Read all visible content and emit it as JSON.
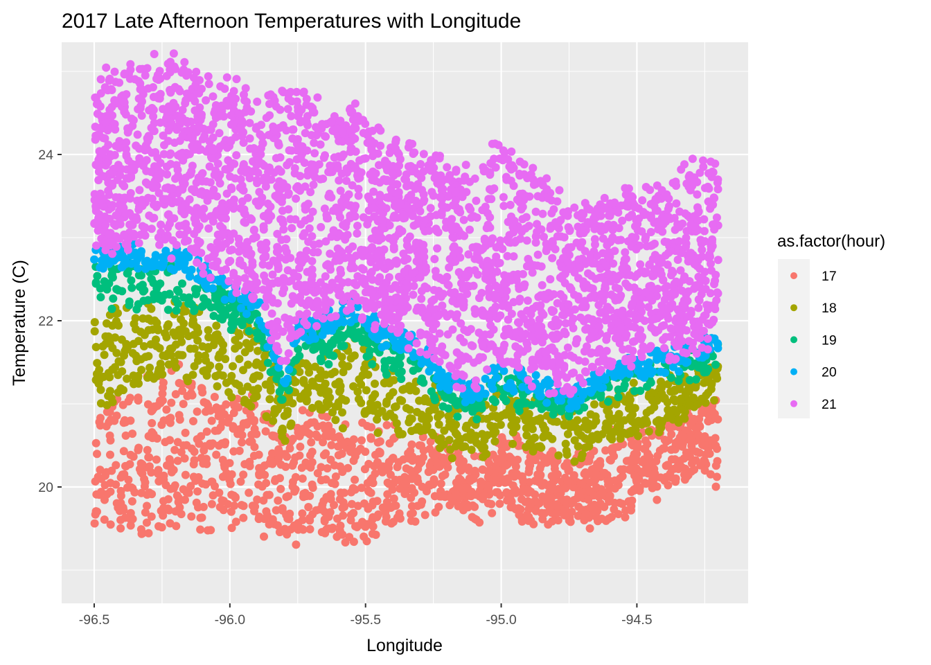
{
  "chart_data": {
    "type": "scatter",
    "title": "2017 Late Afternoon Temperatures with Longitude",
    "xlabel": "Longitude",
    "ylabel": "Temperature (C)",
    "xlim": [
      -96.62,
      -94.09
    ],
    "ylim": [
      18.6,
      25.35
    ],
    "x_ticks": [
      -96.5,
      -96.0,
      -95.5,
      -95.0,
      -94.5
    ],
    "x_tick_labels": [
      "-96.5",
      "-96.0",
      "-95.5",
      "-95.0",
      "-94.5"
    ],
    "y_ticks": [
      20,
      22,
      24
    ],
    "y_tick_labels": [
      "20",
      "22",
      "24"
    ],
    "grid": true,
    "panel_background": "#ebebeb",
    "legend": {
      "title": "as.factor(hour)",
      "placement": "right"
    },
    "x_profile": [
      -96.5,
      -96.35,
      -96.2,
      -96.05,
      -95.9,
      -95.8,
      -95.75,
      -95.65,
      -95.55,
      -95.45,
      -95.3,
      -95.2,
      -95.1,
      -95.0,
      -94.9,
      -94.75,
      -94.6,
      -94.5,
      -94.35,
      -94.2
    ],
    "series": [
      {
        "name": "17",
        "color": "#F8766D",
        "lower": [
          19.6,
          19.4,
          19.5,
          19.5,
          19.5,
          19.4,
          19.4,
          19.4,
          19.3,
          19.5,
          19.7,
          19.8,
          19.6,
          19.8,
          19.6,
          19.6,
          19.6,
          19.8,
          20.1,
          20.1
        ],
        "upper": [
          20.9,
          21.2,
          21.4,
          21.1,
          21.0,
          20.6,
          21.0,
          20.8,
          20.8,
          20.7,
          20.6,
          20.5,
          20.3,
          20.6,
          20.5,
          20.3,
          20.6,
          20.7,
          20.8,
          21.1
        ]
      },
      {
        "name": "18",
        "color": "#A3A500",
        "lower": [
          20.9,
          21.2,
          21.4,
          21.1,
          21.0,
          20.6,
          21.0,
          20.8,
          20.8,
          20.7,
          20.6,
          20.5,
          20.3,
          20.6,
          20.5,
          20.3,
          20.6,
          20.7,
          20.8,
          21.1
        ],
        "upper": [
          22.2,
          22.1,
          22.2,
          22.0,
          21.9,
          21.0,
          21.5,
          21.5,
          21.8,
          21.4,
          21.3,
          21.0,
          20.9,
          21.1,
          21.0,
          20.9,
          21.1,
          21.2,
          21.3,
          21.4
        ]
      },
      {
        "name": "19",
        "color": "#00BF7D",
        "lower": [
          22.2,
          22.1,
          22.2,
          22.0,
          21.9,
          21.0,
          21.5,
          21.5,
          21.8,
          21.4,
          21.3,
          21.0,
          20.9,
          21.1,
          21.0,
          20.9,
          21.1,
          21.2,
          21.3,
          21.4
        ],
        "upper": [
          22.7,
          22.7,
          22.7,
          22.4,
          22.1,
          21.2,
          21.8,
          21.9,
          22.1,
          21.8,
          21.6,
          21.2,
          21.1,
          21.3,
          21.2,
          21.0,
          21.3,
          21.4,
          21.5,
          21.7
        ]
      },
      {
        "name": "20",
        "color": "#00B0F6",
        "lower": [
          22.7,
          22.7,
          22.7,
          22.4,
          22.1,
          21.2,
          21.8,
          21.9,
          22.1,
          21.8,
          21.6,
          21.2,
          21.1,
          21.3,
          21.2,
          21.0,
          21.3,
          21.4,
          21.5,
          21.7
        ],
        "upper": [
          22.9,
          22.8,
          22.8,
          22.5,
          22.2,
          21.3,
          21.9,
          22.0,
          22.2,
          21.9,
          21.7,
          21.3,
          21.2,
          21.4,
          21.3,
          21.1,
          21.4,
          21.5,
          21.6,
          21.8
        ]
      },
      {
        "name": "21",
        "color": "#E76BF3",
        "lower": [
          22.9,
          22.8,
          22.8,
          22.5,
          22.2,
          21.3,
          21.9,
          22.0,
          22.2,
          21.9,
          21.7,
          21.3,
          21.2,
          21.4,
          21.3,
          21.1,
          21.4,
          21.5,
          21.6,
          21.8
        ],
        "upper": [
          24.9,
          25.1,
          25.2,
          25.0,
          24.7,
          24.8,
          24.7,
          24.6,
          24.6,
          24.3,
          24.1,
          23.9,
          23.8,
          24.2,
          23.9,
          23.4,
          23.5,
          23.5,
          23.8,
          23.9
        ]
      }
    ]
  }
}
